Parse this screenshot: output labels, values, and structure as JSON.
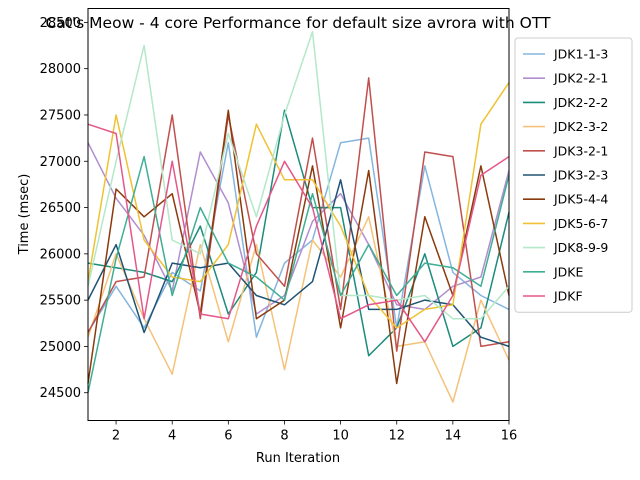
{
  "chart_data": {
    "type": "line",
    "title": "Cat's Meow - 4 core Performance for default size avrora with OTT",
    "xlabel": "Run Iteration",
    "ylabel": "Time (msec)",
    "xlim": [
      1,
      16
    ],
    "ylim": [
      24200,
      28650
    ],
    "xticks": [
      2,
      4,
      6,
      8,
      10,
      12,
      14,
      16
    ],
    "yticks": [
      24500,
      25000,
      25500,
      26000,
      26500,
      27000,
      27500,
      28000,
      28500
    ],
    "grid": false,
    "legend_position": "right-outside-top",
    "x": [
      1,
      2,
      3,
      4,
      5,
      6,
      7,
      8,
      9,
      10,
      11,
      12,
      13,
      14,
      15,
      16
    ],
    "series": [
      {
        "name": "JDK1-1-3",
        "color": "#85b6e0",
        "values": [
          25150,
          25650,
          25200,
          25800,
          25600,
          27200,
          25100,
          25900,
          26150,
          27200,
          27250,
          25200,
          26950,
          25800,
          25550,
          25400
        ]
      },
      {
        "name": "JDK2-2-1",
        "color": "#b08ed0",
        "values": [
          27200,
          26600,
          26200,
          25600,
          27100,
          26550,
          25350,
          25550,
          26350,
          26650,
          26100,
          25450,
          25400,
          25650,
          25750,
          26900
        ]
      },
      {
        "name": "JDK2-2-2",
        "color": "#1c8c7c",
        "values": [
          25900,
          25850,
          25800,
          25700,
          26300,
          25350,
          25800,
          27550,
          26500,
          26500,
          24900,
          25200,
          26000,
          25000,
          25200,
          26450
        ]
      },
      {
        "name": "JDK2-3-2",
        "color": "#f5c27a",
        "values": [
          25100,
          26000,
          25300,
          24700,
          26100,
          25050,
          26100,
          24750,
          26150,
          25750,
          26400,
          25000,
          25050,
          24400,
          25500,
          24850
        ]
      },
      {
        "name": "JDK3-2-1",
        "color": "#c0504d",
        "values": [
          25150,
          25700,
          25750,
          27500,
          25300,
          27500,
          26000,
          25650,
          27250,
          25400,
          27900,
          24950,
          27100,
          27050,
          25000,
          25050
        ]
      },
      {
        "name": "JDK3-2-3",
        "color": "#1f5375",
        "values": [
          25500,
          26100,
          25150,
          25900,
          25850,
          25900,
          25550,
          25450,
          25700,
          26800,
          25400,
          25400,
          25500,
          25450,
          25100,
          25000
        ]
      },
      {
        "name": "JDK5-4-4",
        "color": "#8b3a0d",
        "values": [
          24600,
          26700,
          26400,
          26650,
          25350,
          27550,
          25300,
          25500,
          26950,
          25200,
          26900,
          24600,
          26400,
          25550,
          26950,
          25550
        ]
      },
      {
        "name": "JDK5-6-7",
        "color": "#f0c233",
        "values": [
          25700,
          27500,
          26150,
          25750,
          25700,
          26100,
          27400,
          26800,
          26800,
          26300,
          25550,
          25200,
          25400,
          25450,
          27400,
          27850
        ]
      },
      {
        "name": "JDK8-9-9",
        "color": "#b4e8c9",
        "values": [
          25650,
          27000,
          28250,
          26150,
          26000,
          27300,
          26400,
          27500,
          28400,
          25550,
          25550,
          25500,
          25550,
          25300,
          25300,
          25650
        ]
      },
      {
        "name": "JDKE",
        "color": "#3fae94",
        "values": [
          24500,
          25950,
          27050,
          25550,
          26500,
          25900,
          25750,
          25500,
          26650,
          25550,
          26100,
          25550,
          25900,
          25850,
          25650,
          26850
        ]
      },
      {
        "name": "JDKF",
        "color": "#e5578a",
        "values": [
          27400,
          27300,
          25300,
          27000,
          25350,
          25300,
          26300,
          27000,
          26500,
          25300,
          25450,
          25500,
          25050,
          25550,
          26850,
          27050
        ]
      }
    ]
  }
}
